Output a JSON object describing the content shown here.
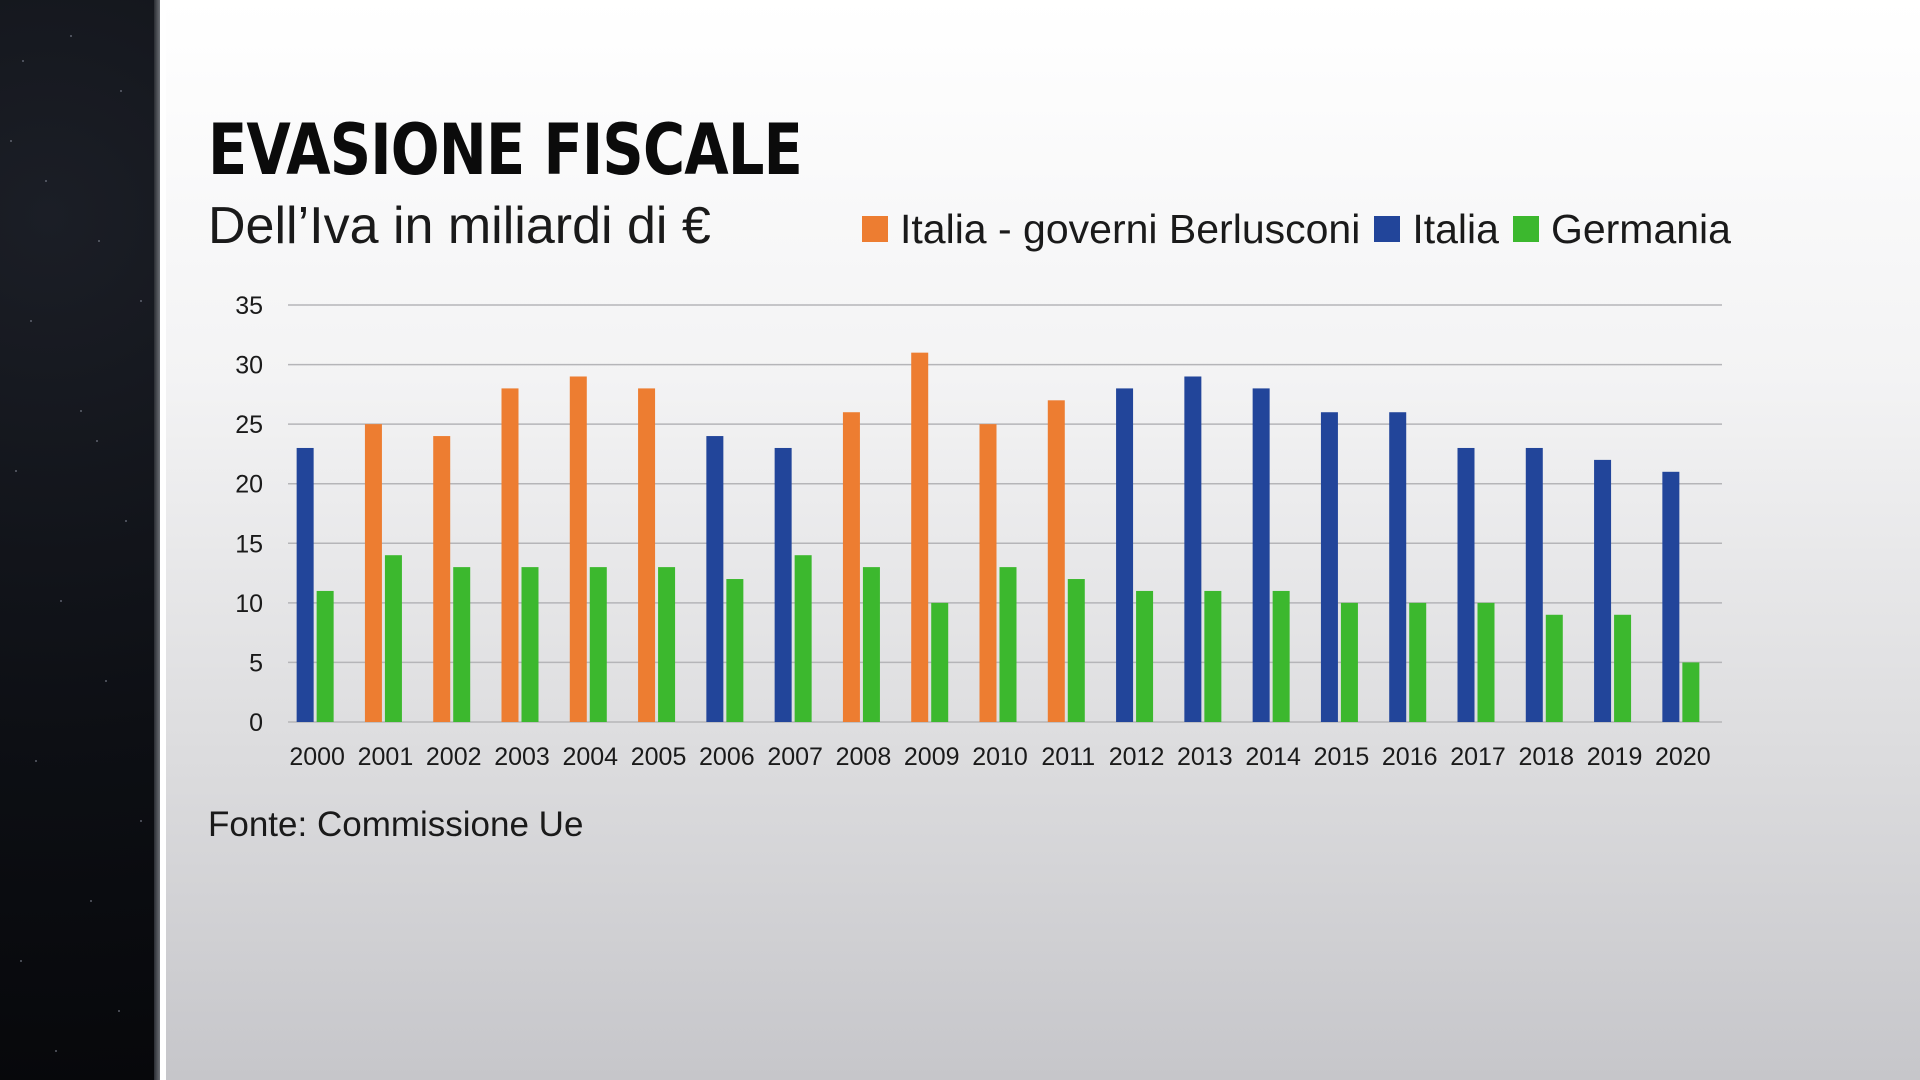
{
  "title": "EVASIONE FISCALE",
  "subtitle": "Dell’Iva in miliardi di €",
  "source": "Fonte: Commissione Ue",
  "colors": {
    "italia_berlusconi": "#ED7D31",
    "italia": "#22459A",
    "germania": "#3CB82E",
    "gridline": "#b5b5b8"
  },
  "legend": [
    {
      "label": "Italia - governi Berlusconi",
      "color": "#ED7D31"
    },
    {
      "label": "Italia",
      "color": "#22459A"
    },
    {
      "label": "Germania",
      "color": "#3CB82E"
    }
  ],
  "chart_data": {
    "type": "bar",
    "title": "EVASIONE FISCALE",
    "subtitle": "Dell’Iva in miliardi di €",
    "xlabel": "",
    "ylabel": "",
    "ylim": [
      0,
      35
    ],
    "yticks": [
      0,
      5,
      10,
      15,
      20,
      25,
      30,
      35
    ],
    "grid": true,
    "legend_position": "top-right",
    "categories": [
      "2000",
      "2001",
      "2002",
      "2003",
      "2004",
      "2005",
      "2006",
      "2007",
      "2008",
      "2009",
      "2010",
      "2011",
      "2012",
      "2013",
      "2014",
      "2015",
      "2016",
      "2017",
      "2018",
      "2019",
      "2020"
    ],
    "series": [
      {
        "name": "Italia",
        "values": [
          23,
          25,
          24,
          28,
          29,
          28,
          24,
          23,
          26,
          31,
          25,
          27,
          28,
          29,
          28,
          26,
          26,
          23,
          23,
          22,
          21
        ],
        "berlusconi_years": [
          "2001",
          "2002",
          "2003",
          "2004",
          "2005",
          "2008",
          "2009",
          "2010",
          "2011"
        ],
        "berlusconi_label": "Italia - governi Berlusconi"
      },
      {
        "name": "Germania",
        "values": [
          11,
          14,
          13,
          13,
          13,
          13,
          12,
          14,
          13,
          10,
          13,
          12,
          11,
          11,
          11,
          10,
          10,
          10,
          9,
          9,
          5
        ]
      }
    ]
  }
}
